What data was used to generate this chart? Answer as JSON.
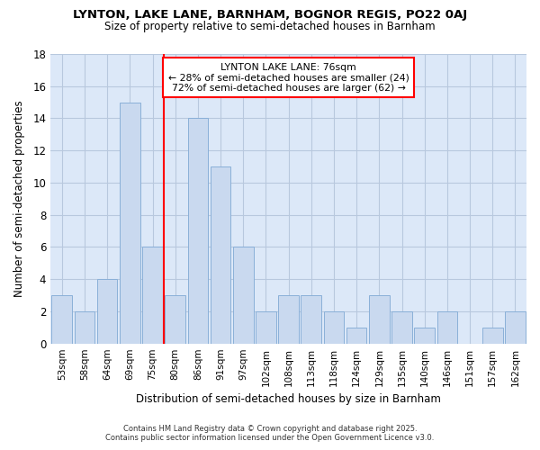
{
  "title1": "LYNTON, LAKE LANE, BARNHAM, BOGNOR REGIS, PO22 0AJ",
  "title2": "Size of property relative to semi-detached houses in Barnham",
  "xlabel": "Distribution of semi-detached houses by size in Barnham",
  "ylabel": "Number of semi-detached properties",
  "categories": [
    "53sqm",
    "58sqm",
    "64sqm",
    "69sqm",
    "75sqm",
    "80sqm",
    "86sqm",
    "91sqm",
    "97sqm",
    "102sqm",
    "108sqm",
    "113sqm",
    "118sqm",
    "124sqm",
    "129sqm",
    "135sqm",
    "140sqm",
    "146sqm",
    "151sqm",
    "157sqm",
    "162sqm"
  ],
  "values": [
    3,
    2,
    4,
    15,
    6,
    3,
    14,
    11,
    6,
    2,
    3,
    3,
    2,
    1,
    3,
    2,
    1,
    2,
    0,
    1,
    2
  ],
  "bar_color": "#c9d9ef",
  "bar_edge_color": "#8ab0d8",
  "grid_color": "#b8c8de",
  "plot_bg_color": "#dce8f8",
  "fig_bg_color": "#ffffff",
  "vline_x": 4.5,
  "vline_color": "red",
  "annotation_title": "LYNTON LAKE LANE: 76sqm",
  "annotation_line1": "← 28% of semi-detached houses are smaller (24)",
  "annotation_line2": "72% of semi-detached houses are larger (62) →",
  "ylim": [
    0,
    18
  ],
  "yticks": [
    0,
    2,
    4,
    6,
    8,
    10,
    12,
    14,
    16,
    18
  ],
  "footer1": "Contains HM Land Registry data © Crown copyright and database right 2025.",
  "footer2": "Contains public sector information licensed under the Open Government Licence v3.0."
}
